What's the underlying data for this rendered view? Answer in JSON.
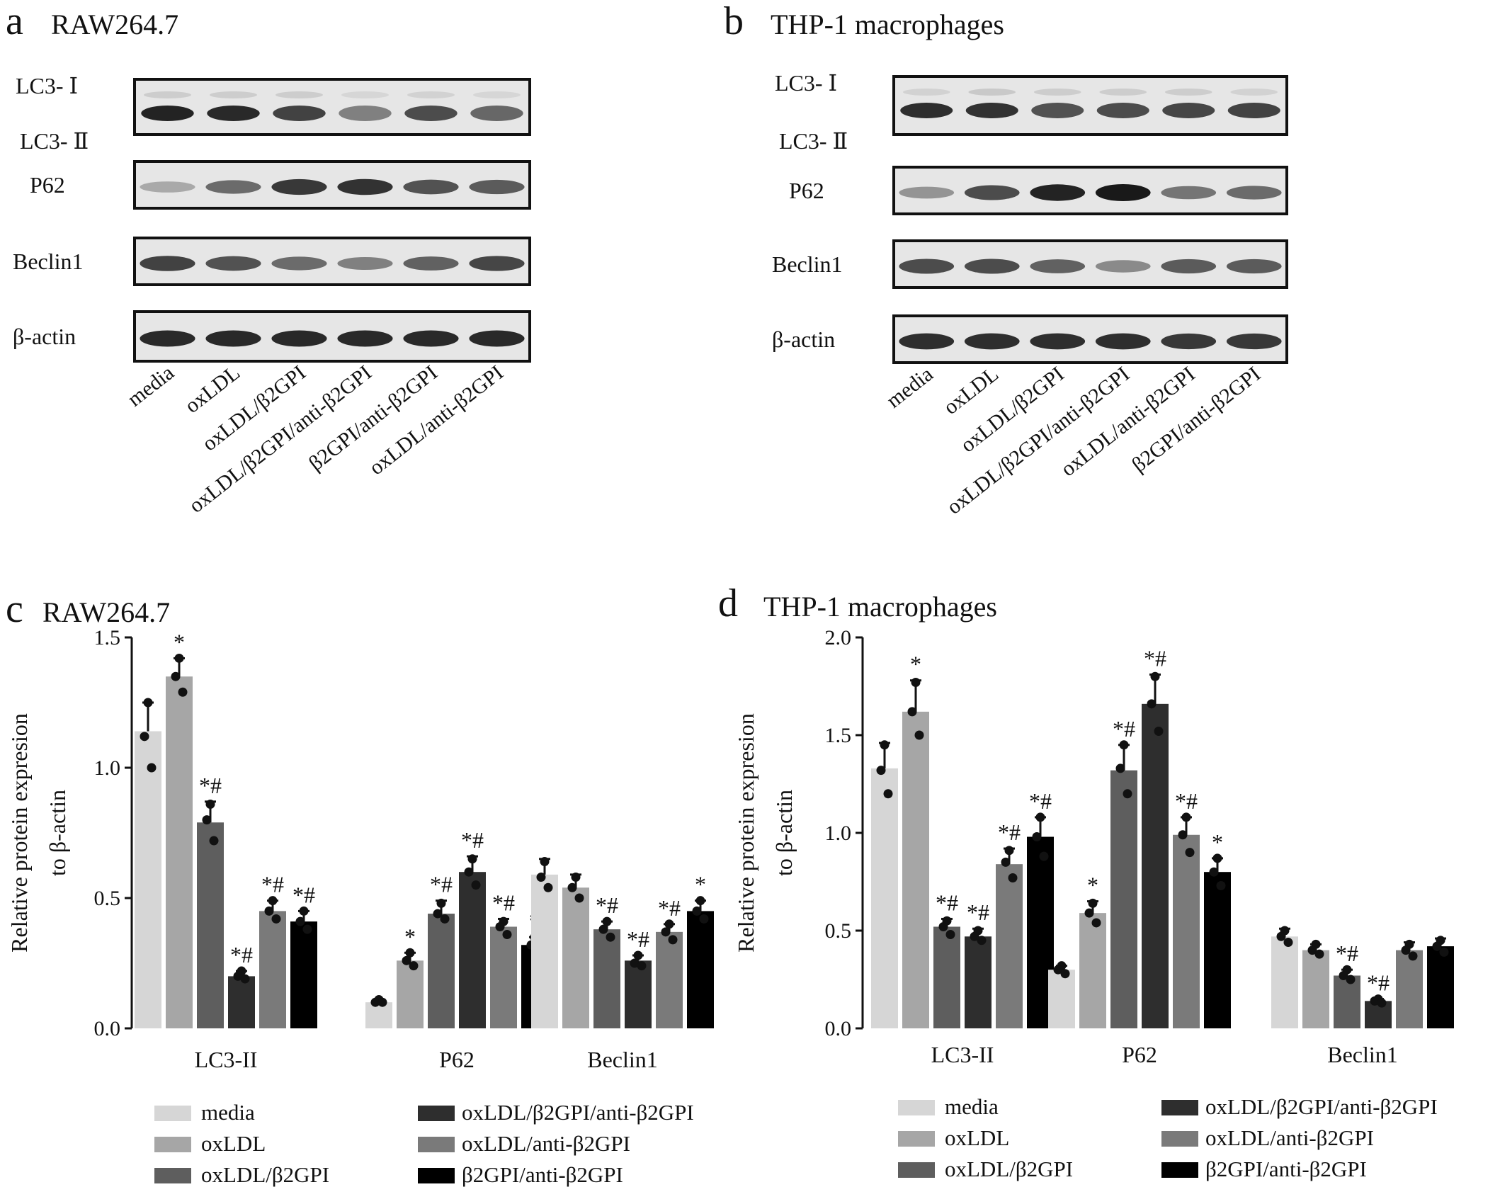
{
  "colors": {
    "media": "#d6d6d6",
    "oxLDL": "#a6a6a6",
    "oxLDL/β2GPI": "#5e5e5e",
    "oxLDL/β2GPI/anti-β2GPI": "#2e2e2e",
    "oxLDL/anti-β2GPI": "#7a7a7a",
    "β2GPI/anti-β2GPI": "#000000",
    "blot_bg": "#e6e6e6",
    "band": "#1c1c1c"
  },
  "blots": [
    {
      "panel": "a",
      "title": "RAW264.7",
      "rows": [
        {
          "labels": [
            "LC3- Ⅰ",
            "LC3- Ⅱ"
          ],
          "upper_intensity": [
            0.12,
            0.12,
            0.12,
            0.08,
            0.1,
            0.08
          ],
          "lower_intensity": [
            0.95,
            0.92,
            0.8,
            0.5,
            0.75,
            0.62
          ]
        },
        {
          "labels": [
            "P62"
          ],
          "intensity": [
            0.3,
            0.6,
            0.85,
            0.88,
            0.72,
            0.68
          ]
        },
        {
          "labels": [
            "Beclin1"
          ],
          "intensity": [
            0.8,
            0.72,
            0.6,
            0.5,
            0.65,
            0.78
          ]
        },
        {
          "labels": [
            "β-actin"
          ],
          "intensity": [
            0.92,
            0.92,
            0.92,
            0.92,
            0.92,
            0.92
          ]
        }
      ],
      "lanes": [
        "media",
        "oxLDL",
        "oxLDL/β2GPI",
        "oxLDL/β2GPI/anti-β2GPI",
        "β2GPI/anti-β2GPI",
        "oxLDL/anti-β2GPI"
      ]
    },
    {
      "panel": "b",
      "title": "THP-1 macrophages",
      "rows": [
        {
          "labels": [
            "LC3- Ⅰ",
            "LC3- Ⅱ"
          ],
          "upper_intensity": [
            0.1,
            0.14,
            0.12,
            0.12,
            0.12,
            0.1
          ],
          "lower_intensity": [
            0.9,
            0.88,
            0.72,
            0.75,
            0.78,
            0.8
          ]
        },
        {
          "labels": [
            "P62"
          ],
          "intensity": [
            0.4,
            0.75,
            0.95,
            1.0,
            0.55,
            0.6
          ]
        },
        {
          "labels": [
            "Beclin1"
          ],
          "intensity": [
            0.75,
            0.75,
            0.65,
            0.45,
            0.68,
            0.68
          ]
        },
        {
          "labels": [
            "β-actin"
          ],
          "intensity": [
            0.9,
            0.9,
            0.9,
            0.9,
            0.85,
            0.85
          ]
        }
      ],
      "lanes": [
        "media",
        "oxLDL",
        "oxLDL/β2GPI",
        "oxLDL/β2GPI/anti-β2GPI",
        "oxLDL/anti-β2GPI",
        "β2GPI/anti-β2GPI"
      ]
    }
  ],
  "chart_data": [
    {
      "type": "bar",
      "panel": "c",
      "title": "RAW264.7",
      "ylabel": "Relative protein expresion",
      "ylabel2": "to β-actin",
      "ylim": [
        0,
        1.5
      ],
      "yticks": [
        "0.0",
        "0.5",
        "1.0",
        "1.5"
      ],
      "categories": [
        "LC3-II",
        "P62",
        "Beclin1"
      ],
      "series": [
        {
          "name": "media",
          "values": [
            1.14,
            0.1,
            0.59
          ],
          "err": [
            0.11,
            0.01,
            0.06
          ],
          "pts": [
            [
              1.25,
              1.12,
              1.0
            ],
            [
              0.11,
              0.1,
              0.1
            ],
            [
              0.64,
              0.58,
              0.54
            ]
          ],
          "mark": [
            "",
            "",
            ""
          ]
        },
        {
          "name": "oxLDL",
          "values": [
            1.35,
            0.26,
            0.54
          ],
          "err": [
            0.07,
            0.03,
            0.05
          ],
          "pts": [
            [
              1.42,
              1.35,
              1.29
            ],
            [
              0.29,
              0.26,
              0.24
            ],
            [
              0.58,
              0.54,
              0.5
            ]
          ],
          "mark": [
            "*",
            "*",
            ""
          ]
        },
        {
          "name": "oxLDL/β2GPI",
          "values": [
            0.79,
            0.44,
            0.38
          ],
          "err": [
            0.08,
            0.05,
            0.03
          ],
          "pts": [
            [
              0.86,
              0.8,
              0.72
            ],
            [
              0.48,
              0.44,
              0.42
            ],
            [
              0.41,
              0.38,
              0.35
            ]
          ],
          "mark": [
            "*#",
            "*#",
            "*#"
          ]
        },
        {
          "name": "oxLDL/β2GPI/anti-β2GPI",
          "values": [
            0.2,
            0.6,
            0.26
          ],
          "err": [
            0.02,
            0.06,
            0.02
          ],
          "pts": [
            [
              0.22,
              0.2,
              0.19
            ],
            [
              0.65,
              0.6,
              0.55
            ],
            [
              0.28,
              0.25,
              0.24
            ]
          ],
          "mark": [
            "*#",
            "*#",
            "*#"
          ]
        },
        {
          "name": "oxLDL/anti-β2GPI",
          "values": [
            0.45,
            0.39,
            0.37
          ],
          "err": [
            0.04,
            0.03,
            0.03
          ],
          "pts": [
            [
              0.49,
              0.45,
              0.42
            ],
            [
              0.41,
              0.39,
              0.36
            ],
            [
              0.4,
              0.37,
              0.34
            ]
          ],
          "mark": [
            "*#",
            "*#",
            "*#"
          ]
        },
        {
          "name": "β2GPI/anti-β2GPI",
          "values": [
            0.41,
            0.32,
            0.45
          ],
          "err": [
            0.04,
            0.03,
            0.04
          ],
          "pts": [
            [
              0.45,
              0.41,
              0.38
            ],
            [
              0.35,
              0.32,
              0.3
            ],
            [
              0.49,
              0.45,
              0.42
            ]
          ],
          "mark": [
            "*#",
            "*",
            "*"
          ]
        }
      ],
      "legend": [
        "media",
        "oxLDL",
        "oxLDL/β2GPI",
        "oxLDL/β2GPI/anti-β2GPI",
        "oxLDL/anti-β2GPI",
        "β2GPI/anti-β2GPI"
      ]
    },
    {
      "type": "bar",
      "panel": "d",
      "title": "THP-1 macrophages",
      "ylabel": "Relative protein expresion",
      "ylabel2": "to β-actin",
      "ylim": [
        0,
        2.0
      ],
      "yticks": [
        "0.0",
        "0.5",
        "1.0",
        "1.5",
        "2.0"
      ],
      "categories": [
        "LC3-II",
        "P62",
        "Beclin1"
      ],
      "series": [
        {
          "name": "media",
          "values": [
            1.33,
            0.3,
            0.47
          ],
          "err": [
            0.13,
            0.02,
            0.04
          ],
          "pts": [
            [
              1.45,
              1.32,
              1.2
            ],
            [
              0.32,
              0.3,
              0.28
            ],
            [
              0.5,
              0.47,
              0.44
            ]
          ],
          "mark": [
            "",
            "",
            ""
          ]
        },
        {
          "name": "oxLDL",
          "values": [
            1.62,
            0.59,
            0.4
          ],
          "err": [
            0.16,
            0.06,
            0.03
          ],
          "pts": [
            [
              1.77,
              1.62,
              1.5
            ],
            [
              0.64,
              0.59,
              0.54
            ],
            [
              0.43,
              0.4,
              0.38
            ]
          ],
          "mark": [
            "*",
            "*",
            ""
          ]
        },
        {
          "name": "oxLDL/β2GPI",
          "values": [
            0.52,
            1.32,
            0.27
          ],
          "err": [
            0.04,
            0.13,
            0.03
          ],
          "pts": [
            [
              0.55,
              0.52,
              0.48
            ],
            [
              1.45,
              1.33,
              1.2
            ],
            [
              0.3,
              0.27,
              0.25
            ]
          ],
          "mark": [
            "*#",
            "*#",
            "*#"
          ]
        },
        {
          "name": "oxLDL/β2GPI/anti-β2GPI",
          "values": [
            0.47,
            1.66,
            0.14
          ],
          "err": [
            0.04,
            0.15,
            0.01
          ],
          "pts": [
            [
              0.5,
              0.47,
              0.45
            ],
            [
              1.8,
              1.66,
              1.52
            ],
            [
              0.15,
              0.14,
              0.13
            ]
          ],
          "mark": [
            "*#",
            "*#",
            "*#"
          ]
        },
        {
          "name": "oxLDL/anti-β2GPI",
          "values": [
            0.84,
            0.99,
            0.4
          ],
          "err": [
            0.08,
            0.09,
            0.04
          ],
          "pts": [
            [
              0.91,
              0.85,
              0.77
            ],
            [
              1.08,
              0.99,
              0.9
            ],
            [
              0.43,
              0.4,
              0.37
            ]
          ],
          "mark": [
            "*#",
            "*#",
            ""
          ]
        },
        {
          "name": "β2GPI/anti-β2GPI",
          "values": [
            0.98,
            0.8,
            0.42
          ],
          "err": [
            0.1,
            0.07,
            0.04
          ],
          "pts": [
            [
              1.08,
              0.98,
              0.88
            ],
            [
              0.87,
              0.8,
              0.73
            ],
            [
              0.45,
              0.42,
              0.39
            ]
          ],
          "mark": [
            "*#",
            "*",
            ""
          ]
        }
      ],
      "legend": [
        "media",
        "oxLDL",
        "oxLDL/β2GPI",
        "oxLDL/β2GPI/anti-β2GPI",
        "oxLDL/anti-β2GPI",
        "β2GPI/anti-β2GPI"
      ]
    }
  ]
}
